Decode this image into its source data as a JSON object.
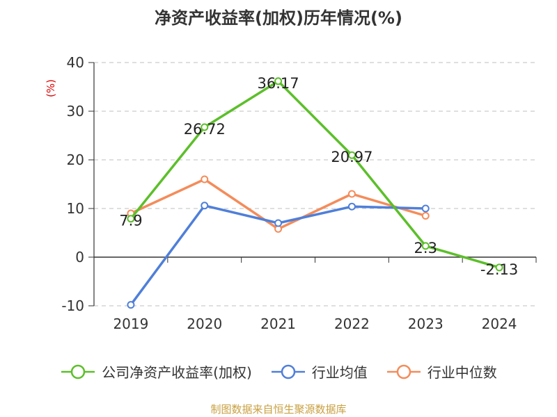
{
  "title": "净资产收益率(加权)历年情况(%)",
  "ylabel": "(%)",
  "footer": "制图数据来自恒生聚源数据库",
  "chart_data": {
    "type": "line",
    "title": "净资产收益率(加权)历年情况(%)",
    "xlabel": "",
    "ylabel": "(%)",
    "categories": [
      "2019",
      "2020",
      "2021",
      "2022",
      "2023",
      "2024"
    ],
    "ylim": [
      -10,
      40
    ],
    "yticks": [
      -10,
      0,
      10,
      20,
      30,
      40
    ],
    "grid": true,
    "legend_position": "bottom",
    "series": [
      {
        "name": "公司净资产收益率(加权)",
        "color": "#5cbf2a",
        "values": [
          7.9,
          26.72,
          36.17,
          20.97,
          2.3,
          -2.13
        ],
        "labels": [
          "7.9",
          "26.72",
          "36.17",
          "20.97",
          "2.3",
          "-2.13"
        ]
      },
      {
        "name": "行业均值",
        "color": "#4f7fd9",
        "values": [
          -9.8,
          10.6,
          7.0,
          10.4,
          10.0,
          null
        ]
      },
      {
        "name": "行业中位数",
        "color": "#f48c5a",
        "values": [
          9.0,
          16.0,
          5.8,
          13.0,
          8.5,
          null
        ]
      }
    ]
  }
}
